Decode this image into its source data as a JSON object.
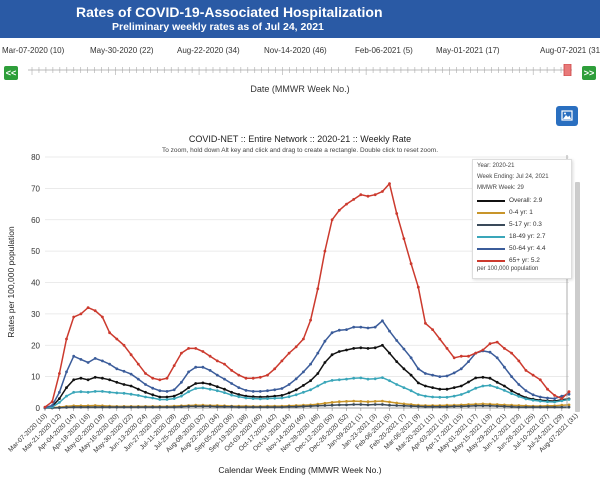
{
  "header": {
    "title": "Rates of COVID-19-Associated Hospitalization",
    "subtitle": "Preliminary weekly rates as of Jul 24, 2021"
  },
  "slider": {
    "tick_labels": [
      "Mar-07-2020 (10)",
      "May-30-2020 (22)",
      "Aug-22-2020 (34)",
      "Nov-14-2020 (46)",
      "Feb-06-2021 (5)",
      "May-01-2021 (17)",
      "Aug-07-2021 (31"
    ],
    "prev_label": "<<",
    "next_label": ">>",
    "axis_title": "Date (MMWR Week No.)"
  },
  "toolbar": {
    "image_button_icon": "image-icon"
  },
  "legend": {
    "meta": [
      "Year: 2020-21",
      "Week Ending: Jul 24, 2021",
      "MMWR Week: 29"
    ],
    "footnote": "per 100,000 population",
    "items": [
      {
        "label": "Overall:  2.9",
        "color": "#111111"
      },
      {
        "label": "0-4 yr:  1",
        "color": "#c8952a"
      },
      {
        "label": "5-17 yr:  0.3",
        "color": "#3a4a5a"
      },
      {
        "label": "18-49 yr:  2.7",
        "color": "#3aa6b9"
      },
      {
        "label": "50-64 yr:  4.4",
        "color": "#3b5c9a"
      },
      {
        "label": "65+ yr:  5.2",
        "color": "#cc3a2e"
      }
    ]
  },
  "chart_data": {
    "type": "line",
    "title": "COVID-NET :: Entire Network :: 2020-21 :: Weekly Rate",
    "subtitle": "To zoom, hold down Alt key and click and drag to create a rectangle. Double click to reset zoom.",
    "xlabel": "Calendar Week Ending (MMWR Week No.)",
    "ylabel": "Rates per 100,000 population",
    "ylim": [
      0,
      80
    ],
    "yticks": [
      0,
      10,
      20,
      30,
      40,
      50,
      60,
      70,
      80
    ],
    "grid": true,
    "legend_position": "top-right",
    "x_tick_labels": [
      "Mar-07-2020 (10)",
      "Mar-21-2020 (12)",
      "Apr-04-2020 (14)",
      "Apr-18-2020 (16)",
      "May-02-2020 (18)",
      "May-16-2020 (20)",
      "May-30-2020 (22)",
      "Jun-13-2020 (24)",
      "Jun-27-2020 (26)",
      "Jul-11-2020 (28)",
      "Jul-25-2020 (30)",
      "Aug-08-2020 (32)",
      "Aug-22-2020 (34)",
      "Sep-05-2020 (36)",
      "Sep-19-2020 (38)",
      "Oct-03-2020 (40)",
      "Oct-17-2020 (42)",
      "Oct-31-2020 (44)",
      "Nov-14-2020 (46)",
      "Nov-28-2020 (48)",
      "Dec-12-2020 (50)",
      "Dec-26-2020 (52)",
      "Jan-09-2021 (1)",
      "Jan-23-2021 (3)",
      "Feb-06-2021 (5)",
      "Feb-20-2021 (7)",
      "Mar-06-2021 (9)",
      "Mar-20-2021 (11)",
      "Apr-03-2021 (13)",
      "Apr-17-2021 (15)",
      "May-01-2021 (17)",
      "May-15-2021 (19)",
      "May-29-2021 (21)",
      "Jun-12-2021 (23)",
      "Jun-26-2021 (25)",
      "Jul-10-2021 (27)",
      "Jul-24-2021 (29)",
      "Aug-07-2021 (31)"
    ],
    "n_weeks": 74,
    "series": [
      {
        "name": "Overall",
        "color": "#111111",
        "values": [
          0.1,
          0.5,
          3.0,
          6.5,
          9.0,
          9.5,
          9.0,
          9.8,
          9.5,
          9.0,
          8.2,
          7.5,
          7.0,
          6.0,
          5.0,
          4.2,
          3.5,
          3.5,
          3.8,
          4.8,
          6.5,
          7.8,
          8.0,
          7.6,
          6.8,
          6.0,
          5.0,
          4.3,
          3.8,
          3.6,
          3.5,
          3.6,
          3.8,
          4.0,
          4.8,
          5.8,
          7.2,
          8.7,
          11.0,
          14.5,
          17.0,
          18.0,
          18.5,
          19.0,
          19.2,
          19.0,
          19.2,
          20.0,
          17.5,
          14.8,
          12.5,
          10.5,
          8.0,
          7.0,
          6.5,
          6.0,
          6.0,
          6.5,
          7.0,
          8.3,
          9.6,
          9.8,
          9.5,
          8.2,
          7.0,
          5.5,
          4.3,
          3.3,
          2.8,
          2.5,
          2.3,
          2.2,
          2.6,
          2.9
        ]
      },
      {
        "name": "0-4 yr",
        "color": "#c8952a",
        "values": [
          0.1,
          0.1,
          0.3,
          0.5,
          0.7,
          0.7,
          0.7,
          0.8,
          0.7,
          0.6,
          0.5,
          0.5,
          0.5,
          0.5,
          0.5,
          0.5,
          0.5,
          0.5,
          0.6,
          0.7,
          0.8,
          0.9,
          0.9,
          0.8,
          0.8,
          0.7,
          0.6,
          0.6,
          0.6,
          0.5,
          0.5,
          0.6,
          0.6,
          0.6,
          0.7,
          0.8,
          0.9,
          1.0,
          1.2,
          1.5,
          1.8,
          2.0,
          2.1,
          2.2,
          2.1,
          2.0,
          2.1,
          2.2,
          1.9,
          1.6,
          1.3,
          1.1,
          0.9,
          0.8,
          0.8,
          0.8,
          0.9,
          0.9,
          1.0,
          1.1,
          1.2,
          1.3,
          1.2,
          1.1,
          1.0,
          0.9,
          0.8,
          0.7,
          0.6,
          0.6,
          0.7,
          0.7,
          0.9,
          1.0
        ]
      },
      {
        "name": "5-17 yr",
        "color": "#3a4a5a",
        "values": [
          0.0,
          0.0,
          0.1,
          0.2,
          0.3,
          0.3,
          0.3,
          0.3,
          0.3,
          0.3,
          0.3,
          0.3,
          0.3,
          0.3,
          0.3,
          0.3,
          0.3,
          0.3,
          0.3,
          0.4,
          0.5,
          0.5,
          0.5,
          0.5,
          0.4,
          0.4,
          0.4,
          0.3,
          0.3,
          0.3,
          0.3,
          0.3,
          0.3,
          0.3,
          0.4,
          0.4,
          0.5,
          0.6,
          0.7,
          0.8,
          0.9,
          1.0,
          1.0,
          1.1,
          1.1,
          1.0,
          1.1,
          1.1,
          0.9,
          0.8,
          0.7,
          0.6,
          0.5,
          0.4,
          0.4,
          0.4,
          0.4,
          0.5,
          0.5,
          0.6,
          0.7,
          0.7,
          0.7,
          0.6,
          0.5,
          0.4,
          0.3,
          0.3,
          0.3,
          0.3,
          0.3,
          0.3,
          0.3,
          0.3
        ]
      },
      {
        "name": "18-49 yr",
        "color": "#3aa6b9",
        "values": [
          0.1,
          0.3,
          1.8,
          3.8,
          5.0,
          5.2,
          5.0,
          5.3,
          5.3,
          5.0,
          4.8,
          4.7,
          4.4,
          4.0,
          3.5,
          3.2,
          2.7,
          2.7,
          3.0,
          3.8,
          5.2,
          6.2,
          6.4,
          6.0,
          5.5,
          4.9,
          4.1,
          3.6,
          3.2,
          3.0,
          2.9,
          3.0,
          3.1,
          3.2,
          3.6,
          4.2,
          5.0,
          5.8,
          7.0,
          8.2,
          8.8,
          9.0,
          9.2,
          9.5,
          9.6,
          9.2,
          9.3,
          9.7,
          8.7,
          7.5,
          6.5,
          5.5,
          4.3,
          3.8,
          3.5,
          3.4,
          3.4,
          3.8,
          4.3,
          5.2,
          6.3,
          7.0,
          7.2,
          6.5,
          5.6,
          4.6,
          3.7,
          2.9,
          2.5,
          2.2,
          2.0,
          1.9,
          2.3,
          2.7
        ]
      },
      {
        "name": "50-64 yr",
        "color": "#3b5c9a",
        "values": [
          0.1,
          0.8,
          5.0,
          11.5,
          16.5,
          15.5,
          14.5,
          15.8,
          15.0,
          14.0,
          12.5,
          11.7,
          10.8,
          9.2,
          7.5,
          6.3,
          5.5,
          5.3,
          5.8,
          8.2,
          11.5,
          13.0,
          13.0,
          12.0,
          10.5,
          9.2,
          7.8,
          6.5,
          5.6,
          5.3,
          5.3,
          5.5,
          5.8,
          6.2,
          7.5,
          9.3,
          11.5,
          14.0,
          17.5,
          21.3,
          24.0,
          24.8,
          25.0,
          25.8,
          25.8,
          25.5,
          25.8,
          27.8,
          24.5,
          21.5,
          18.8,
          16.0,
          12.5,
          11.0,
          10.5,
          10.0,
          10.2,
          11.2,
          12.5,
          14.8,
          17.5,
          18.2,
          17.8,
          16.0,
          13.0,
          10.0,
          7.5,
          5.5,
          4.2,
          3.5,
          3.2,
          3.0,
          3.8,
          4.4
        ]
      },
      {
        "name": "65+ yr",
        "color": "#cc3a2e",
        "values": [
          0.3,
          2.0,
          11.0,
          22.0,
          29.0,
          30.0,
          32.0,
          31.0,
          29.0,
          24.0,
          22.0,
          20.0,
          17.0,
          14.0,
          11.0,
          9.5,
          9.0,
          9.5,
          13.5,
          17.5,
          19.0,
          19.0,
          18.0,
          16.5,
          15.0,
          14.0,
          12.0,
          10.5,
          9.5,
          9.5,
          9.8,
          10.5,
          12.5,
          15.0,
          17.5,
          19.5,
          22.0,
          28.0,
          38.0,
          50.0,
          60.0,
          63.0,
          65.0,
          66.5,
          68.0,
          67.5,
          68.0,
          69.0,
          71.5,
          62.0,
          54.0,
          46.0,
          38.5,
          27.0,
          25.0,
          22.0,
          19.0,
          16.0,
          16.5,
          16.5,
          17.5,
          18.5,
          20.5,
          21.0,
          19.0,
          17.5,
          15.0,
          12.0,
          10.5,
          9.0,
          6.0,
          4.0,
          3.0,
          5.2
        ]
      }
    ]
  }
}
